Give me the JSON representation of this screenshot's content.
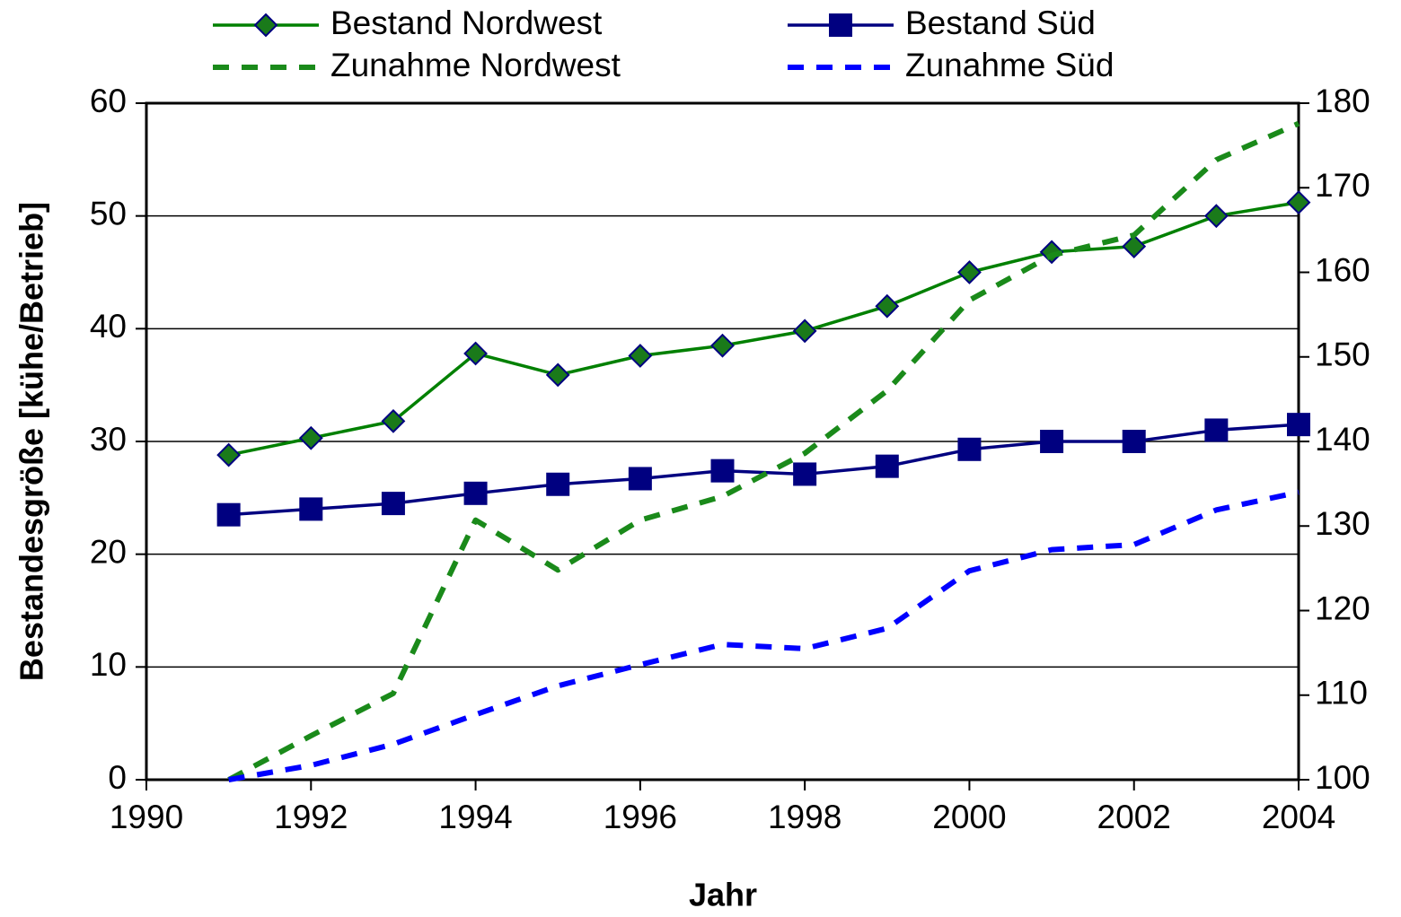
{
  "chart_data": {
    "type": "line",
    "x_label": "Jahr",
    "y_label": "Bestandesgröße [kühe/Betrieb]",
    "x": [
      1991,
      1992,
      1993,
      1994,
      1995,
      1996,
      1997,
      1998,
      1999,
      2000,
      2001,
      2002,
      2003,
      2004
    ],
    "xlim": [
      1990,
      2004
    ],
    "xticks": [
      1990,
      1992,
      1994,
      1996,
      1998,
      2000,
      2002,
      2004
    ],
    "ylim": [
      0,
      60
    ],
    "yticks": [
      0,
      10,
      20,
      30,
      40,
      50,
      60
    ],
    "y2lim": [
      100,
      180
    ],
    "y2ticks": [
      100,
      110,
      120,
      130,
      140,
      150,
      160,
      170,
      180
    ],
    "grid": true,
    "legend": "top",
    "series": [
      {
        "name": "Bestand Nordwest",
        "color": "#008000",
        "marker": "diamond",
        "dashed": false,
        "values": [
          28.8,
          30.3,
          31.8,
          37.8,
          35.9,
          37.6,
          38.5,
          39.8,
          42.0,
          45.0,
          46.8,
          47.3,
          50.0,
          51.2
        ]
      },
      {
        "name": "Bestand Süd",
        "color": "#000080",
        "marker": "square",
        "dashed": false,
        "values": [
          23.5,
          24.0,
          24.5,
          25.4,
          26.2,
          26.7,
          27.4,
          27.1,
          27.8,
          29.3,
          30.0,
          30.0,
          31.0,
          31.5
        ]
      },
      {
        "name": "Zunahme Nordwest",
        "color": "#1a8a1a",
        "marker": null,
        "dashed": true,
        "axis": "y2",
        "values": [
          100,
          105.2,
          110.2,
          130.7,
          124.8,
          130.7,
          133.5,
          138.6,
          146.0,
          156.7,
          162.0,
          164.4,
          173.3,
          177.6
        ]
      },
      {
        "name": "Zunahme Süd",
        "color": "#0000ff",
        "marker": null,
        "dashed": true,
        "axis": "y2",
        "values": [
          100,
          101.7,
          104.2,
          107.7,
          111.1,
          113.6,
          116.0,
          115.5,
          117.9,
          124.7,
          127.2,
          127.8,
          131.9,
          134.0
        ]
      }
    ]
  }
}
